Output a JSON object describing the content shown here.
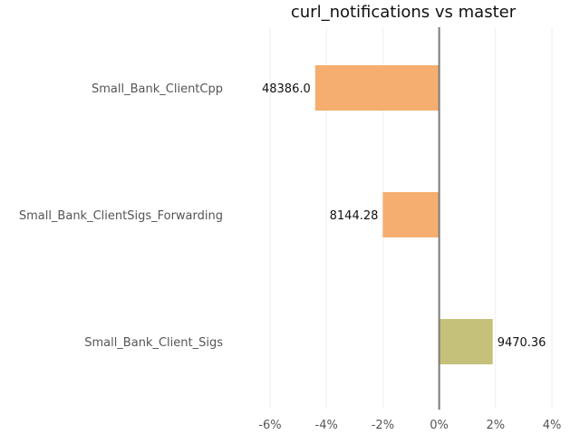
{
  "chart_data": {
    "type": "bar",
    "orientation": "horizontal",
    "title": "curl_notifications vs master",
    "xlabel": "",
    "ylabel": "",
    "categories": [
      "Small_Bank_ClientCpp",
      "Small_Bank_ClientSigs_Forwarding",
      "Small_Bank_Client_Sigs"
    ],
    "values": [
      -4.4,
      -2.0,
      1.9
    ],
    "data_labels": [
      "48386.0",
      "8144.28",
      "9470.36"
    ],
    "bar_colors": [
      "#f5ae70",
      "#f5ae70",
      "#c5c07a"
    ],
    "xlim": [
      -6,
      4
    ],
    "xticks": [
      -6,
      -4,
      -2,
      0,
      2,
      4
    ],
    "xtick_labels": [
      "-6%",
      "-4%",
      "-2%",
      "0%",
      "2%",
      "4%"
    ],
    "grid": true,
    "legend": "none"
  }
}
